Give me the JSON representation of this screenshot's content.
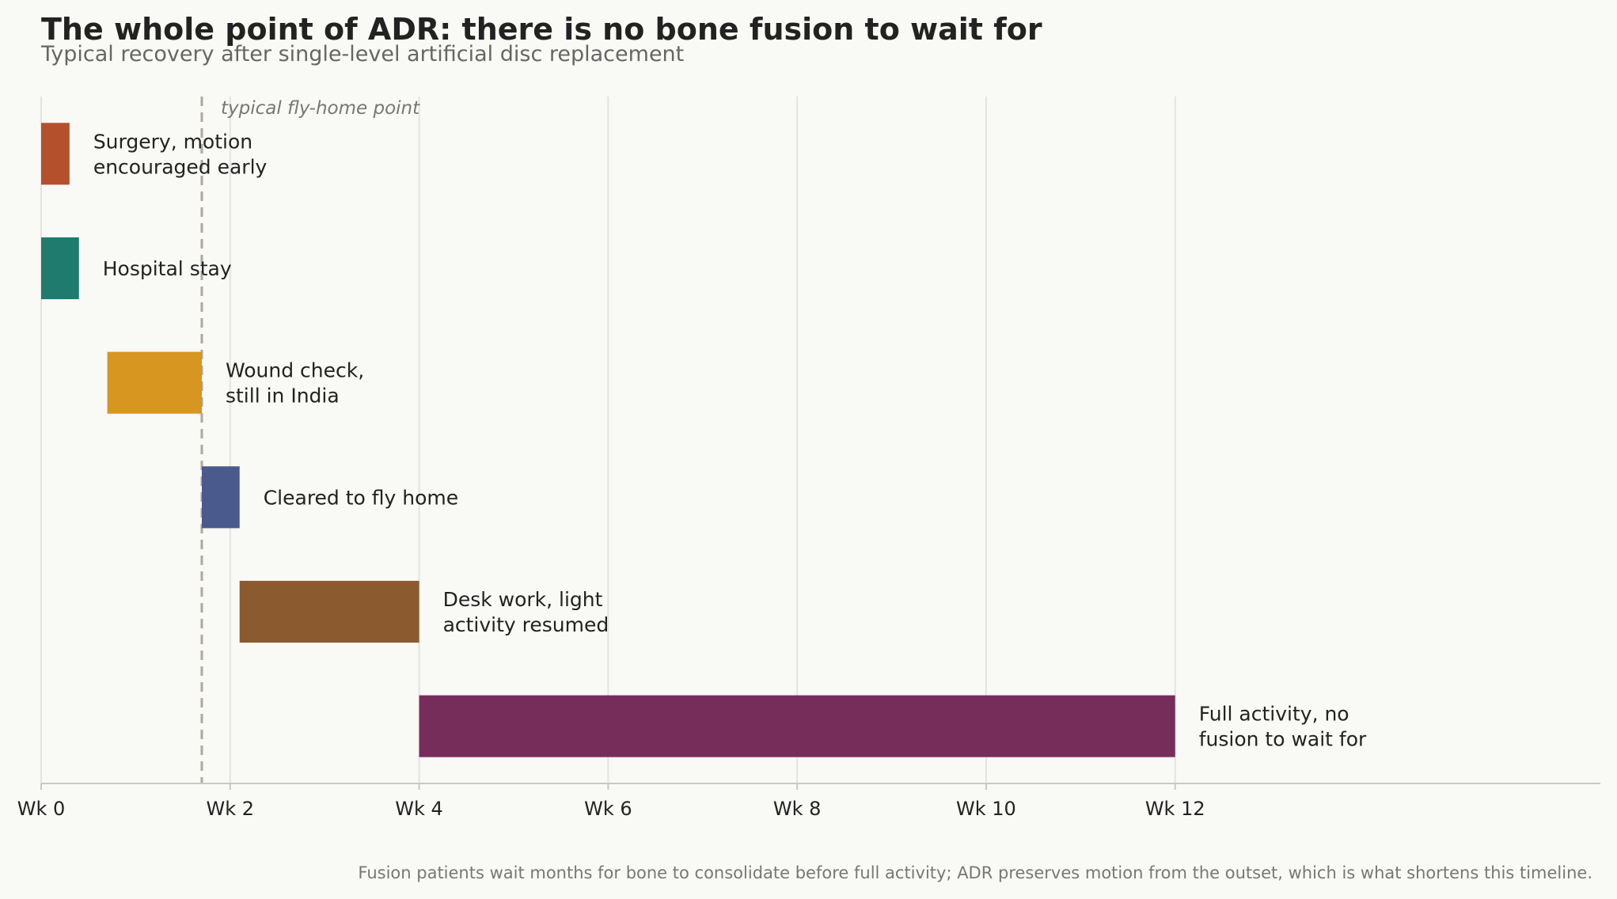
{
  "chart_data": {
    "type": "bar",
    "orientation": "horizontal",
    "title": "The whole point of ADR: there is no bone fusion to wait for",
    "subtitle": "Typical recovery after single-level artificial disc replacement",
    "x_unit": "weeks",
    "xlim": [
      0,
      16.5
    ],
    "x_ticks": [
      0,
      2,
      4,
      6,
      8,
      10,
      12
    ],
    "x_tick_labels": [
      "Wk 0",
      "Wk 2",
      "Wk 4",
      "Wk 6",
      "Wk 8",
      "Wk 10",
      "Wk 12"
    ],
    "grid": true,
    "phases": [
      {
        "label": "Surgery, motion\nencouraged early",
        "start": 0,
        "end": 0.3,
        "color": "#b5502d"
      },
      {
        "label": "Hospital stay",
        "start": 0,
        "end": 0.4,
        "color": "#1e7b6d"
      },
      {
        "label": "Wound check,\nstill in India",
        "start": 0.7,
        "end": 1.7,
        "color": "#d6961f"
      },
      {
        "label": "Cleared to fly home",
        "start": 1.7,
        "end": 2.1,
        "color": "#4a5a8c"
      },
      {
        "label": "Desk work, light\nactivity resumed",
        "start": 2.1,
        "end": 4,
        "color": "#8b5a2e"
      },
      {
        "label": "Full activity, no\nfusion to wait for",
        "start": 4,
        "end": 12,
        "color": "#772d5a"
      }
    ],
    "reference_line": {
      "x": 1.7,
      "label": "typical fly-home point",
      "color": "#b0a8a0"
    },
    "footnote": "Fusion patients wait months for bone to consolidate before full activity; ADR preserves motion from the outset, which is what shortens this timeline."
  }
}
